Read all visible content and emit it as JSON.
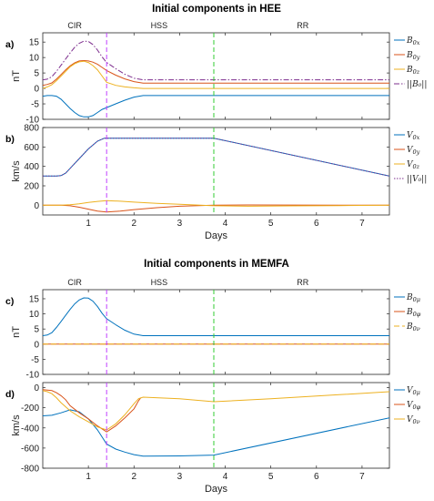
{
  "figure": {
    "section1_title": "Initial components in HEE",
    "section2_title": "Initial components in MEMFA"
  },
  "colors": {
    "blue": "#0072BD",
    "orange": "#D95319",
    "yellow": "#EDB120",
    "purple": "#7E2F8E",
    "cir_line": "#c040ff",
    "rr_line": "#33cc33"
  },
  "chart_data": [
    {
      "id": "a",
      "type": "line",
      "panel_label": "a)",
      "ylabel": "nT",
      "xlabel": "",
      "xlim": [
        0,
        7.6
      ],
      "ylim": [
        -10,
        18
      ],
      "yticks": [
        -10,
        -5,
        0,
        5,
        10,
        15
      ],
      "xticks": [
        1,
        2,
        3,
        4,
        5,
        6,
        7
      ],
      "show_xtick_labels": false,
      "regions": [
        "CIR",
        "HSS",
        "RR"
      ],
      "vlines": [
        1.4,
        3.75
      ],
      "series": [
        {
          "name": "B0x",
          "name_sub": "0x",
          "name_base": "B",
          "color": "blue",
          "dash": "solid",
          "x": [
            0,
            0.1,
            0.2,
            0.3,
            0.4,
            0.5,
            0.6,
            0.7,
            0.8,
            0.9,
            1.0,
            1.1,
            1.2,
            1.3,
            1.4,
            1.6,
            1.8,
            2.0,
            2.2,
            7.6
          ],
          "y": [
            -2.5,
            -2.3,
            -2.3,
            -2.5,
            -3.5,
            -5,
            -6.5,
            -7.8,
            -8.8,
            -9.2,
            -9.2,
            -8.8,
            -7.8,
            -6.8,
            -6.2,
            -5,
            -3.8,
            -2.8,
            -2.3,
            -2.3
          ]
        },
        {
          "name": "B0y",
          "name_sub": "0y",
          "name_base": "B",
          "color": "orange",
          "dash": "solid",
          "x": [
            0,
            0.1,
            0.2,
            0.3,
            0.4,
            0.5,
            0.6,
            0.7,
            0.8,
            0.9,
            1.0,
            1.1,
            1.2,
            1.3,
            1.4,
            1.6,
            1.8,
            2.0,
            2.2,
            7.6
          ],
          "y": [
            1,
            1.3,
            1.8,
            3,
            4.5,
            6,
            7.3,
            8.3,
            8.9,
            9,
            8.9,
            8.5,
            7.8,
            6.8,
            5.8,
            4.3,
            3.1,
            2.2,
            1.7,
            1.7
          ]
        },
        {
          "name": "B0z",
          "name_sub": "0z",
          "name_base": "B",
          "color": "yellow",
          "dash": "solid",
          "x": [
            0,
            0.1,
            0.2,
            0.3,
            0.4,
            0.5,
            0.6,
            0.7,
            0.8,
            0.9,
            1.0,
            1.1,
            1.2,
            1.3,
            1.4,
            1.6,
            1.8,
            2.0,
            2.2,
            7.6
          ],
          "y": [
            0,
            0.5,
            1.2,
            2.5,
            4,
            5.5,
            7,
            8,
            8.6,
            8.8,
            8.4,
            7.4,
            6,
            4,
            2,
            1,
            0.5,
            0.2,
            0,
            0
          ]
        },
        {
          "name": "||B0||",
          "name_sub": "",
          "name_base": "||B₀||",
          "color": "purple",
          "dash": "dashdot",
          "x": [
            0,
            0.1,
            0.2,
            0.3,
            0.4,
            0.5,
            0.6,
            0.7,
            0.8,
            0.9,
            1.0,
            1.1,
            1.2,
            1.3,
            1.4,
            1.6,
            1.8,
            2.0,
            2.2,
            7.6
          ],
          "y": [
            2.8,
            3,
            3.8,
            5.5,
            7.5,
            9.5,
            11.5,
            13.3,
            14.6,
            15.3,
            15.2,
            14.2,
            12.4,
            10.2,
            8.4,
            6.4,
            4.6,
            3.3,
            2.8,
            2.8
          ]
        }
      ]
    },
    {
      "id": "b",
      "type": "line",
      "panel_label": "b)",
      "ylabel": "km/s",
      "xlabel": "Days",
      "xlim": [
        0,
        7.6
      ],
      "ylim": [
        -100,
        800
      ],
      "yticks": [
        0,
        200,
        400,
        600,
        800
      ],
      "xticks": [
        1,
        2,
        3,
        4,
        5,
        6,
        7
      ],
      "show_xtick_labels": true,
      "regions": [],
      "vlines": [
        1.4,
        3.75
      ],
      "series": [
        {
          "name": "V0x",
          "name_sub": "0x",
          "name_base": "V",
          "color": "blue",
          "dash": "solid",
          "x": [
            0,
            0.3,
            0.4,
            0.5,
            0.6,
            0.8,
            1.0,
            1.2,
            1.35,
            1.5,
            3.75,
            7.6
          ],
          "y": [
            300,
            300,
            305,
            330,
            380,
            480,
            580,
            660,
            690,
            690,
            690,
            300
          ]
        },
        {
          "name": "V0y",
          "name_sub": "0y",
          "name_base": "V",
          "color": "orange",
          "dash": "solid",
          "x": [
            0,
            0.4,
            0.6,
            0.8,
            1.0,
            1.2,
            1.4,
            1.7,
            2.0,
            2.5,
            3.0,
            3.75,
            4.5,
            5.5,
            6.5,
            7.6
          ],
          "y": [
            0,
            0,
            -5,
            -20,
            -40,
            -60,
            -70,
            -60,
            -45,
            -25,
            -10,
            0,
            3,
            2,
            1,
            0
          ]
        },
        {
          "name": "V0z",
          "name_sub": "0z",
          "name_base": "V",
          "color": "yellow",
          "dash": "solid",
          "x": [
            0,
            0.4,
            0.6,
            0.8,
            1.0,
            1.2,
            1.4,
            1.7,
            2.0,
            2.5,
            3.0,
            3.75,
            4.5,
            5.5,
            6.5,
            7.6
          ],
          "y": [
            0,
            0,
            5,
            15,
            28,
            40,
            48,
            42,
            32,
            20,
            10,
            -5,
            -10,
            -6,
            -3,
            0
          ]
        },
        {
          "name": "||V0||",
          "name_sub": "",
          "name_base": "||V₀||",
          "color": "purple",
          "dash": "dotted",
          "x": [
            0,
            0.3,
            0.4,
            0.5,
            0.6,
            0.8,
            1.0,
            1.2,
            1.35,
            1.5,
            3.75,
            7.6
          ],
          "y": [
            300,
            300,
            305,
            330,
            380,
            480,
            580,
            660,
            690,
            690,
            690,
            300
          ]
        }
      ]
    },
    {
      "id": "c",
      "type": "line",
      "panel_label": "c)",
      "ylabel": "nT",
      "xlabel": "",
      "xlim": [
        0,
        7.6
      ],
      "ylim": [
        -10,
        18
      ],
      "yticks": [
        -10,
        -5,
        0,
        5,
        10,
        15
      ],
      "xticks": [
        1,
        2,
        3,
        4,
        5,
        6,
        7
      ],
      "show_xtick_labels": false,
      "regions": [
        "CIR",
        "HSS",
        "RR"
      ],
      "vlines": [
        1.4,
        3.75
      ],
      "series": [
        {
          "name": "B0μ",
          "name_sub": "0μ",
          "name_base": "B",
          "color": "blue",
          "dash": "solid",
          "x": [
            0,
            0.1,
            0.2,
            0.3,
            0.4,
            0.5,
            0.6,
            0.7,
            0.8,
            0.9,
            1.0,
            1.1,
            1.2,
            1.3,
            1.4,
            1.6,
            1.8,
            2.0,
            2.2,
            7.6
          ],
          "y": [
            2.8,
            3,
            3.8,
            5.5,
            7.5,
            9.5,
            11.5,
            13.3,
            14.6,
            15.3,
            15.2,
            14.2,
            12.4,
            10.2,
            8.4,
            6.4,
            4.6,
            3.3,
            2.8,
            2.8
          ]
        },
        {
          "name": "B0φ",
          "name_sub": "0φ",
          "name_base": "B",
          "color": "orange",
          "dash": "solid",
          "x": [
            0,
            7.6
          ],
          "y": [
            0,
            0
          ]
        },
        {
          "name": "B0ν",
          "name_sub": "0ν",
          "name_base": "B",
          "color": "yellow",
          "dash": "dashed",
          "x": [
            0,
            7.6
          ],
          "y": [
            0,
            0
          ]
        }
      ]
    },
    {
      "id": "d",
      "type": "line",
      "panel_label": "d)",
      "ylabel": "km/s",
      "xlabel": "Days",
      "xlim": [
        0,
        7.6
      ],
      "ylim": [
        -800,
        50
      ],
      "yticks": [
        -800,
        -600,
        -400,
        -200,
        0
      ],
      "xticks": [
        1,
        2,
        3,
        4,
        5,
        6,
        7
      ],
      "show_xtick_labels": true,
      "regions": [],
      "vlines": [
        1.4,
        3.75
      ],
      "series": [
        {
          "name": "V0μ",
          "name_sub": "0μ",
          "name_base": "V",
          "color": "blue",
          "dash": "solid",
          "x": [
            0,
            0.2,
            0.4,
            0.6,
            0.8,
            1.0,
            1.2,
            1.4,
            1.6,
            1.8,
            2.0,
            2.2,
            3.0,
            3.75,
            7.6
          ],
          "y": [
            -280,
            -275,
            -250,
            -220,
            -240,
            -310,
            -420,
            -560,
            -610,
            -640,
            -665,
            -680,
            -678,
            -670,
            -300
          ]
        },
        {
          "name": "V0φ",
          "name_sub": "0φ",
          "name_base": "V",
          "color": "orange",
          "dash": "solid",
          "x": [
            0,
            0.2,
            0.3,
            0.4,
            0.5,
            0.6,
            0.8,
            1.0,
            1.2,
            1.4,
            1.6,
            1.8,
            2.0,
            2.1,
            2.15
          ],
          "y": [
            -20,
            -30,
            -50,
            -80,
            -120,
            -180,
            -250,
            -310,
            -380,
            -440,
            -380,
            -300,
            -210,
            -130,
            -100
          ]
        },
        {
          "name": "V0ν",
          "name_sub": "0ν",
          "name_base": "V",
          "color": "yellow",
          "dash": "solid",
          "x": [
            0,
            0.1,
            0.2,
            0.3,
            0.4,
            0.6,
            0.8,
            1.0,
            1.2,
            1.4,
            1.6,
            1.8,
            2.0,
            2.1,
            2.2,
            3.0,
            3.75,
            5.0,
            6.5,
            7.6
          ],
          "y": [
            -30,
            -40,
            -60,
            -100,
            -150,
            -230,
            -290,
            -340,
            -390,
            -420,
            -360,
            -270,
            -160,
            -110,
            -95,
            -110,
            -140,
            -110,
            -70,
            -40
          ]
        }
      ]
    }
  ]
}
